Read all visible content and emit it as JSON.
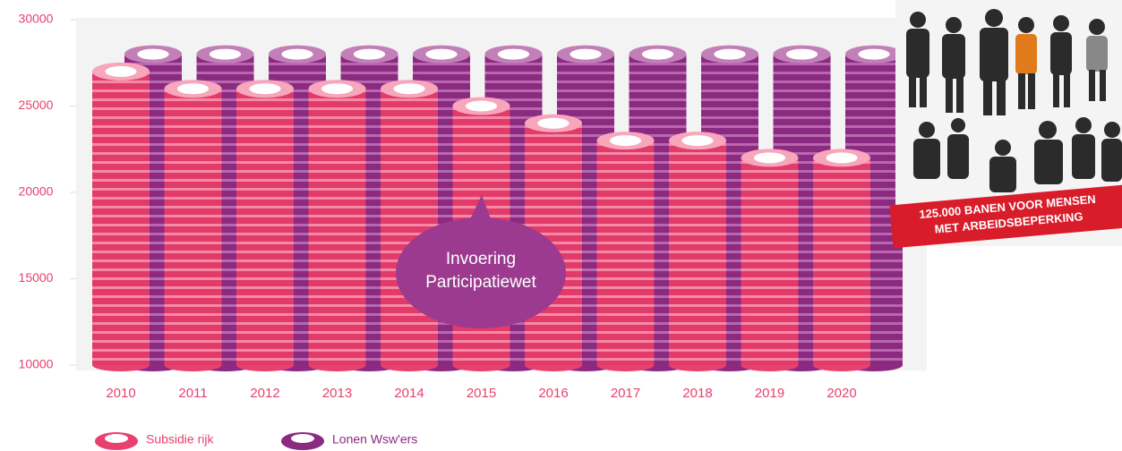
{
  "chart_data": {
    "type": "bar",
    "categories": [
      "2010",
      "2011",
      "2012",
      "2013",
      "2014",
      "2015",
      "2016",
      "2017",
      "2018",
      "2019",
      "2020"
    ],
    "series": [
      {
        "name": "Subsidie rijk",
        "color": "#e8416f",
        "values": [
          27000,
          26000,
          26000,
          26000,
          26000,
          25000,
          24000,
          23000,
          23000,
          22000,
          22000
        ]
      },
      {
        "name": "Lonen Wsw'ers",
        "color": "#8c2a82",
        "values": [
          28000,
          28000,
          28000,
          28000,
          28000,
          28000,
          28000,
          28000,
          28000,
          28000,
          28000
        ]
      }
    ],
    "ylim": [
      10000,
      30000
    ],
    "yticks": [
      10000,
      15000,
      20000,
      25000,
      30000
    ],
    "annotation": [
      "Invoering",
      "Participatiewet"
    ]
  },
  "photo": {
    "banner": [
      "125.000 BANEN VOOR MENSEN",
      "MET ARBEIDSBEPERKING"
    ]
  }
}
